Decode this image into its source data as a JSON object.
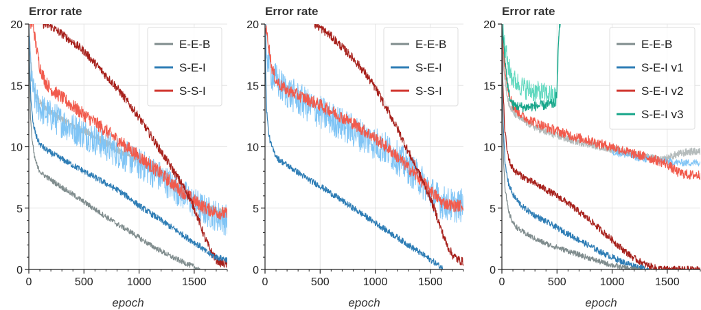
{
  "chart_data": [
    {
      "type": "line",
      "title": "Error rate",
      "xlabel": "epoch",
      "ylabel": "",
      "xlim": [
        0,
        1800
      ],
      "ylim": [
        0,
        20
      ],
      "xticks": [
        0,
        500,
        1000,
        1500
      ],
      "yticks": [
        0,
        5,
        10,
        15,
        20
      ],
      "grid": true,
      "legend_position": "top-right",
      "legend": [
        {
          "label": "E-E-B",
          "color": "#7f8c8d"
        },
        {
          "label": "S-E-I",
          "color": "#2e7db5"
        },
        {
          "label": "S-S-I",
          "color": "#d0342c"
        }
      ],
      "series": [
        {
          "name": "",
          "color": "#b5bcbc",
          "width": 1.5,
          "noise": 0.3,
          "x": [
            0,
            10,
            30,
            60,
            100,
            150,
            200,
            300,
            400,
            500,
            600,
            700,
            800,
            900,
            1000,
            1100,
            1200,
            1300,
            1400,
            1500,
            1600,
            1700,
            1800
          ],
          "y": [
            20,
            18,
            15.5,
            14.2,
            13.6,
            13.2,
            12.8,
            12.2,
            11.7,
            11.3,
            10.8,
            10.3,
            9.8,
            9.3,
            8.8,
            8.3,
            7.7,
            7.0,
            6.3,
            5.6,
            5.0,
            4.8,
            4.7
          ]
        },
        {
          "name": "",
          "color": "#7fc4f5",
          "width": 1.0,
          "noise": 1.3,
          "x": [
            0,
            10,
            30,
            60,
            100,
            150,
            200,
            300,
            400,
            500,
            600,
            700,
            800,
            900,
            1000,
            1100,
            1200,
            1300,
            1400,
            1500,
            1600,
            1700,
            1800
          ],
          "y": [
            20,
            17.5,
            15,
            13.8,
            13.2,
            12.8,
            12.5,
            12.0,
            11.5,
            11.1,
            10.6,
            10.1,
            9.6,
            9.1,
            8.6,
            8.1,
            7.5,
            6.8,
            6.1,
            5.4,
            4.8,
            4.4,
            4.0
          ]
        },
        {
          "name": "",
          "color": "#f15b4d",
          "width": 1.2,
          "noise": 0.55,
          "x": [
            0,
            40,
            60,
            100,
            150,
            200,
            300,
            400,
            500,
            600,
            700,
            800,
            900,
            1000,
            1100,
            1200,
            1300,
            1400,
            1500,
            1600,
            1700,
            1800
          ],
          "y": [
            20,
            20,
            18.5,
            16.5,
            15.3,
            14.7,
            14.0,
            13.3,
            12.6,
            12.0,
            11.3,
            10.6,
            9.9,
            9.2,
            8.5,
            7.8,
            7.0,
            6.3,
            5.6,
            5.0,
            4.7,
            4.5
          ]
        },
        {
          "name": "",
          "color": "#a7211c",
          "width": 1.2,
          "noise": 0.35,
          "x": [
            130,
            200,
            300,
            400,
            500,
            600,
            700,
            800,
            900,
            1000,
            1100,
            1200,
            1300,
            1400,
            1450,
            1500,
            1550,
            1600,
            1650,
            1700,
            1750,
            1800
          ],
          "y": [
            20,
            19.8,
            19.2,
            18.5,
            17.8,
            16.8,
            15.8,
            14.8,
            13.6,
            12.4,
            11.0,
            9.6,
            8.2,
            6.8,
            6.0,
            5.0,
            3.8,
            2.5,
            1.5,
            0.8,
            0.5,
            0.4
          ]
        },
        {
          "name": "",
          "color": "#2e7db5",
          "width": 1.2,
          "noise": 0.25,
          "x": [
            0,
            10,
            20,
            40,
            70,
            100,
            150,
            200,
            300,
            400,
            500,
            600,
            700,
            800,
            900,
            1000,
            1100,
            1200,
            1300,
            1400,
            1500,
            1550,
            1600,
            1650,
            1700,
            1800
          ],
          "y": [
            20,
            16,
            13.5,
            11.8,
            10.8,
            10.2,
            9.8,
            9.5,
            9.0,
            8.5,
            8.0,
            7.5,
            7.0,
            6.5,
            5.9,
            5.2,
            4.6,
            4.0,
            3.4,
            2.8,
            2.2,
            1.9,
            1.5,
            1.2,
            1.0,
            0.8
          ]
        },
        {
          "name": "",
          "color": "#7f8c8d",
          "width": 1.2,
          "noise": 0.22,
          "x": [
            0,
            5,
            15,
            30,
            50,
            80,
            120,
            200,
            300,
            400,
            500,
            600,
            700,
            800,
            900,
            1000,
            1100,
            1200,
            1300,
            1400,
            1500,
            1550
          ],
          "y": [
            20,
            16,
            12.5,
            10.5,
            9.2,
            8.3,
            7.8,
            7.3,
            6.7,
            6.1,
            5.5,
            4.9,
            4.3,
            3.7,
            3.2,
            2.6,
            2.0,
            1.5,
            1.0,
            0.6,
            0.2,
            0
          ]
        }
      ]
    },
    {
      "type": "line",
      "title": "Error rate",
      "xlabel": "epoch",
      "ylabel": "",
      "xlim": [
        0,
        1800
      ],
      "ylim": [
        0,
        20
      ],
      "xticks": [
        0,
        500,
        1000,
        1500
      ],
      "yticks": [
        0,
        5,
        10,
        15,
        20
      ],
      "grid": true,
      "legend_position": "top-right",
      "legend": [
        {
          "label": "E-E-B",
          "color": "#7f8c8d"
        },
        {
          "label": "S-E-I",
          "color": "#2e7db5"
        },
        {
          "label": "S-S-I",
          "color": "#d0342c"
        }
      ],
      "series": [
        {
          "name": "",
          "color": "#7fc4f5",
          "width": 1.0,
          "noise": 1.4,
          "x": [
            0,
            20,
            60,
            100,
            150,
            200,
            300,
            400,
            500,
            600,
            700,
            800,
            900,
            1000,
            1100,
            1200,
            1300,
            1400,
            1450,
            1500,
            1600,
            1700,
            1800
          ],
          "y": [
            20,
            17.5,
            16,
            15.4,
            14.9,
            14.5,
            13.9,
            13.3,
            12.8,
            12.3,
            11.8,
            11.3,
            10.8,
            10.3,
            9.8,
            9.1,
            8.3,
            7.4,
            6.9,
            6.3,
            5.5,
            5.2,
            5.2
          ]
        },
        {
          "name": "",
          "color": "#f15b4d",
          "width": 1.2,
          "noise": 0.5,
          "x": [
            0,
            30,
            60,
            100,
            150,
            200,
            300,
            400,
            500,
            600,
            700,
            800,
            900,
            1000,
            1100,
            1200,
            1300,
            1400,
            1500,
            1550,
            1600,
            1700,
            1800
          ],
          "y": [
            20,
            18.5,
            16.5,
            15.4,
            14.9,
            14.6,
            14.2,
            13.8,
            13.4,
            12.9,
            12.4,
            11.9,
            11.3,
            10.7,
            10.0,
            9.2,
            8.3,
            7.4,
            6.5,
            6.0,
            5.5,
            5.2,
            5.2
          ]
        },
        {
          "name": "",
          "color": "#a7211c",
          "width": 1.2,
          "noise": 0.35,
          "x": [
            450,
            500,
            600,
            700,
            800,
            900,
            1000,
            1100,
            1200,
            1300,
            1400,
            1450,
            1500,
            1550,
            1600,
            1650,
            1700,
            1750,
            1800
          ],
          "y": [
            20,
            19.7,
            19.0,
            18.1,
            17.2,
            16.1,
            14.8,
            13.2,
            11.5,
            9.6,
            7.8,
            6.8,
            5.8,
            4.6,
            3.2,
            2.0,
            1.2,
            0.8,
            0.6
          ]
        },
        {
          "name": "",
          "color": "#2e7db5",
          "width": 1.2,
          "noise": 0.25,
          "x": [
            0,
            5,
            15,
            30,
            50,
            80,
            120,
            200,
            300,
            400,
            500,
            600,
            700,
            800,
            900,
            1000,
            1100,
            1200,
            1300,
            1400,
            1500,
            1550,
            1600,
            1620
          ],
          "y": [
            20,
            16,
            13,
            11.3,
            10.3,
            9.6,
            9.0,
            8.5,
            7.9,
            7.3,
            6.8,
            6.2,
            5.6,
            5.0,
            4.4,
            3.8,
            3.2,
            2.6,
            2.0,
            1.4,
            0.8,
            0.5,
            0.15,
            0
          ]
        }
      ]
    },
    {
      "type": "line",
      "title": "Error rate",
      "xlabel": "epoch",
      "ylabel": "",
      "xlim": [
        0,
        1800
      ],
      "ylim": [
        0,
        20
      ],
      "xticks": [
        0,
        500,
        1000,
        1500
      ],
      "yticks": [
        0,
        5,
        10,
        15,
        20
      ],
      "grid": true,
      "legend_position": "top-right",
      "legend": [
        {
          "label": "E-E-B",
          "color": "#7f8c8d"
        },
        {
          "label": "S-E-I v1",
          "color": "#2e7db5"
        },
        {
          "label": "S-E-I v2",
          "color": "#d0342c"
        },
        {
          "label": "S-E-I v3",
          "color": "#17a589"
        }
      ],
      "series": [
        {
          "name": "",
          "color": "#b5bcbc",
          "width": 1.4,
          "noise": 0.3,
          "x": [
            0,
            20,
            60,
            100,
            200,
            300,
            400,
            500,
            600,
            700,
            800,
            900,
            1000,
            1100,
            1200,
            1300,
            1400,
            1450,
            1500,
            1600,
            1700,
            1800
          ],
          "y": [
            20,
            16,
            13.5,
            12.8,
            12.1,
            11.6,
            11.2,
            10.9,
            10.6,
            10.4,
            10.2,
            10.0,
            9.8,
            9.6,
            9.4,
            9.2,
            9.0,
            8.9,
            9.1,
            9.4,
            9.6,
            9.6
          ]
        },
        {
          "name": "",
          "color": "#7fc4f5",
          "width": 1.0,
          "noise": 0.3,
          "x": [
            1000,
            1100,
            1200,
            1300,
            1400,
            1500,
            1600,
            1700,
            1800
          ],
          "y": [
            9.6,
            9.4,
            9.2,
            9.0,
            8.9,
            8.8,
            8.7,
            8.7,
            8.7
          ]
        },
        {
          "name": "",
          "color": "#f15b4d",
          "width": 1.2,
          "noise": 0.4,
          "x": [
            0,
            20,
            60,
            100,
            200,
            300,
            400,
            500,
            600,
            700,
            800,
            900,
            1000,
            1100,
            1200,
            1300,
            1400,
            1500,
            1550,
            1600,
            1700,
            1800
          ],
          "y": [
            20,
            17,
            14.5,
            13.3,
            12.4,
            12.0,
            11.6,
            11.3,
            11.0,
            10.7,
            10.5,
            10.2,
            10.0,
            9.7,
            9.4,
            9.2,
            8.9,
            8.6,
            8.2,
            7.9,
            7.7,
            7.7
          ]
        },
        {
          "name": "",
          "color": "#5fd8be",
          "width": 1.0,
          "noise": 0.9,
          "x": [
            0,
            30,
            60,
            100,
            200,
            300,
            400,
            500,
            520
          ],
          "y": [
            20,
            18,
            16.5,
            15.5,
            14.8,
            14.5,
            14.3,
            14.0,
            20
          ]
        },
        {
          "name": "",
          "color": "#17a589",
          "width": 1.2,
          "noise": 0.4,
          "x": [
            0,
            40,
            60,
            80,
            100,
            200,
            300,
            400,
            480,
            500,
            510,
            520,
            530
          ],
          "y": [
            20,
            16,
            14.5,
            13.8,
            13.4,
            13.2,
            13.3,
            13.4,
            13.5,
            14.5,
            18,
            20,
            20
          ]
        },
        {
          "name": "",
          "color": "#a7211c",
          "width": 1.2,
          "noise": 0.28,
          "x": [
            0,
            10,
            25,
            50,
            80,
            120,
            200,
            300,
            400,
            500,
            600,
            700,
            800,
            900,
            1000,
            1100,
            1200,
            1300,
            1400,
            1450,
            1500,
            1600,
            1700,
            1800
          ],
          "y": [
            20,
            15,
            11.5,
            9.5,
            8.5,
            8.0,
            7.5,
            7.0,
            6.5,
            6.0,
            5.4,
            4.7,
            4.0,
            3.2,
            2.4,
            1.6,
            0.9,
            0.4,
            0.1,
            0.05,
            0,
            0,
            0,
            0
          ]
        },
        {
          "name": "",
          "color": "#2e7db5",
          "width": 1.2,
          "noise": 0.25,
          "x": [
            0,
            5,
            15,
            30,
            60,
            100,
            150,
            200,
            300,
            400,
            500,
            600,
            700,
            800,
            900,
            1000,
            1100,
            1200,
            1300,
            1330
          ],
          "y": [
            20,
            15,
            11,
            8.5,
            7.0,
            6.1,
            5.5,
            5.0,
            4.4,
            3.9,
            3.4,
            2.9,
            2.4,
            1.9,
            1.4,
            1.0,
            0.6,
            0.3,
            0.05,
            0
          ]
        },
        {
          "name": "",
          "color": "#7f8c8d",
          "width": 1.2,
          "noise": 0.22,
          "x": [
            0,
            5,
            15,
            30,
            60,
            100,
            150,
            200,
            300,
            400,
            500,
            600,
            700,
            800,
            900,
            1000,
            1100,
            1200,
            1250
          ],
          "y": [
            20,
            14,
            9,
            6.5,
            4.7,
            3.8,
            3.3,
            3.0,
            2.5,
            2.1,
            1.8,
            1.5,
            1.2,
            0.9,
            0.6,
            0.35,
            0.15,
            0.03,
            0
          ]
        }
      ]
    }
  ]
}
